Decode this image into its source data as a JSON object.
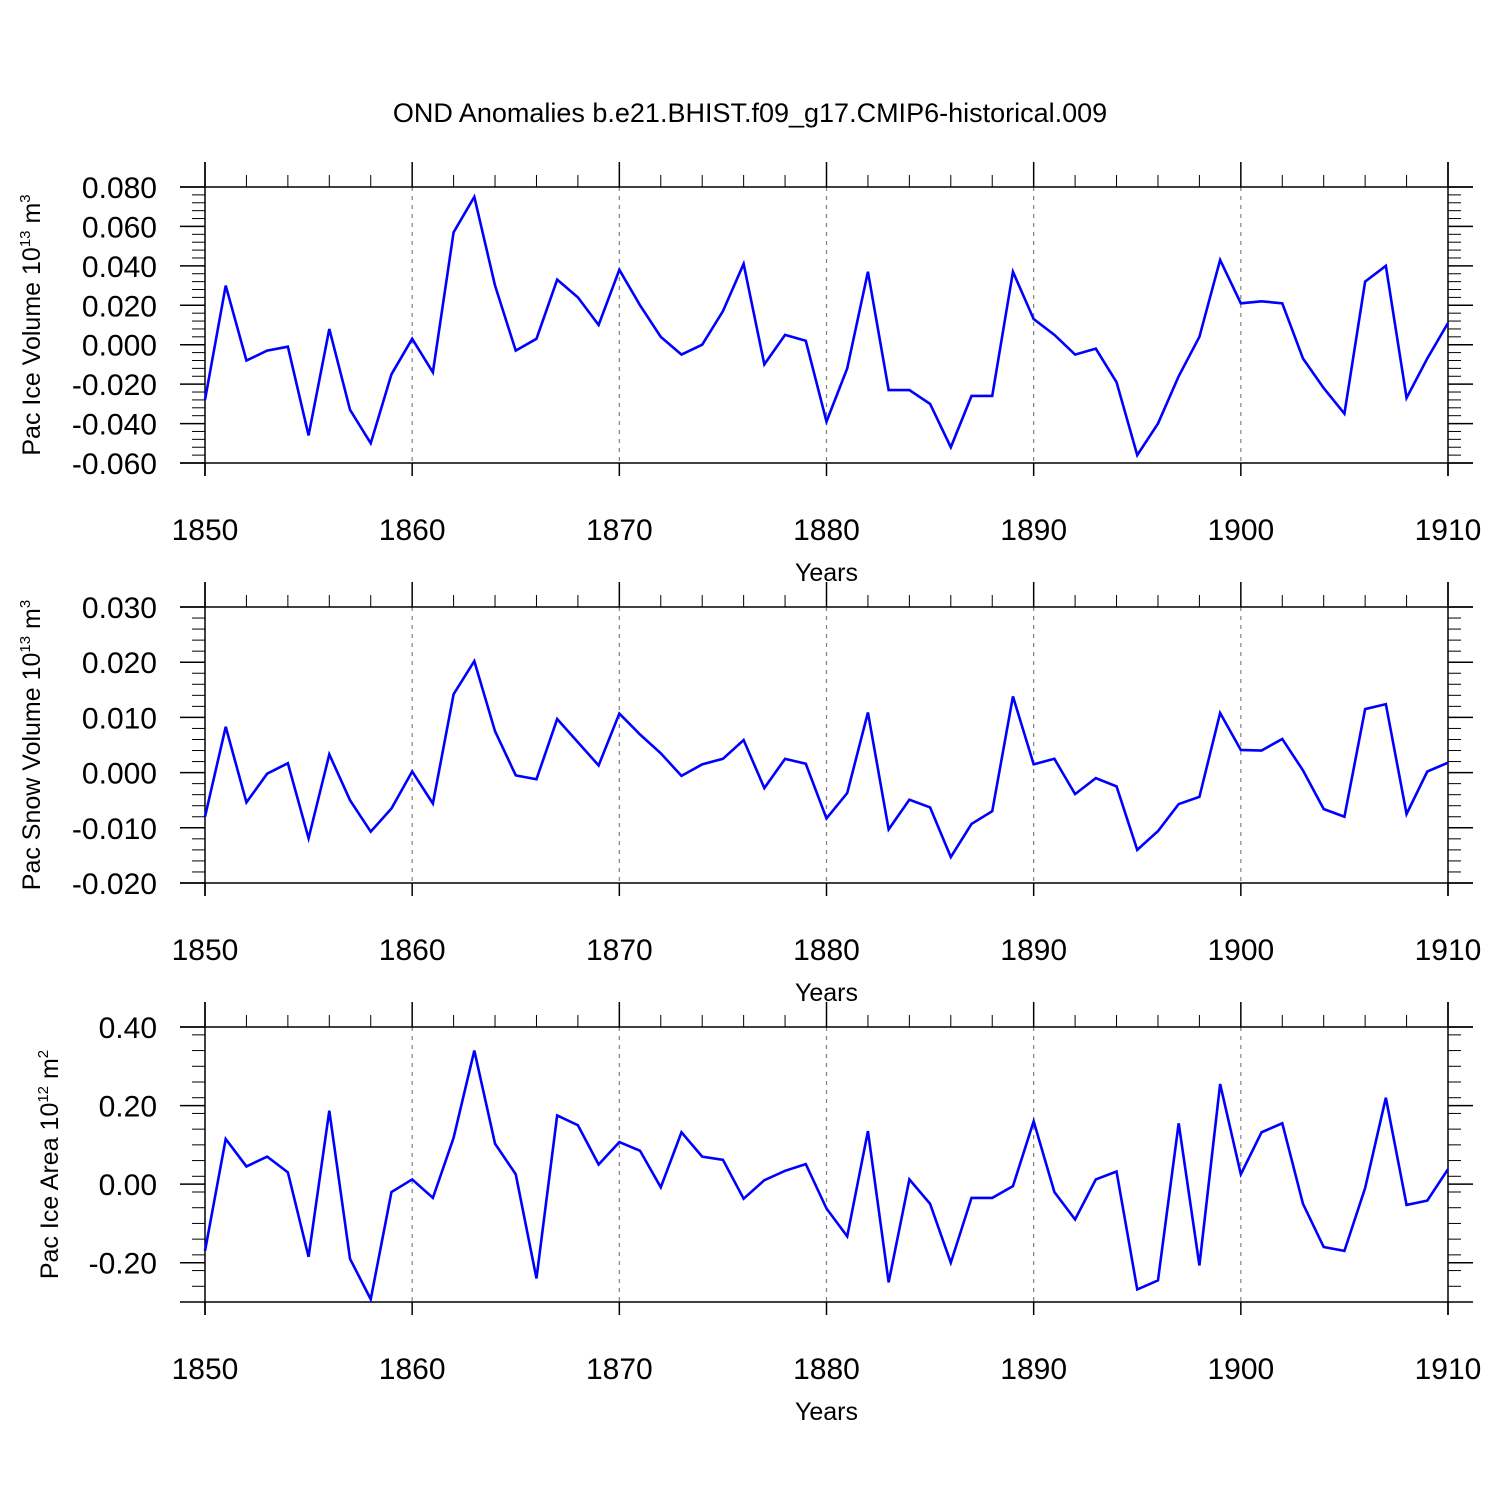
{
  "title": "OND Anomalies b.e21.BHIST.f09_g17.CMIP6-historical.009",
  "colors": {
    "line": "#0000ff",
    "axis": "#000000",
    "grid": "#808080"
  },
  "chart_data": [
    {
      "type": "line",
      "ylabel": "Pac Ice Volume 10",
      "ylabel_exp": "13",
      "ylabel_unit": " m",
      "ylabel_unit_exp": "3",
      "xlabel": "Years",
      "xlim": [
        1850,
        1910
      ],
      "ylim": [
        -0.06,
        0.08
      ],
      "yticks": [
        -0.06,
        -0.04,
        -0.02,
        0.0,
        0.02,
        0.04,
        0.06,
        0.08
      ],
      "ytick_labels": [
        "-0.060",
        "-0.040",
        "-0.020",
        "0.000",
        "0.020",
        "0.040",
        "0.060",
        "0.080"
      ],
      "xticks": [
        1850,
        1860,
        1870,
        1880,
        1890,
        1900,
        1910
      ],
      "xtick_labels": [
        "1850",
        "1860",
        "1870",
        "1880",
        "1890",
        "1900",
        "1910"
      ],
      "series": [
        {
          "name": "Pac Ice Volume",
          "x_start": 1850,
          "values": [
            -0.028,
            0.03,
            -0.008,
            -0.003,
            -0.001,
            -0.046,
            0.008,
            -0.033,
            -0.05,
            -0.015,
            0.003,
            -0.014,
            0.057,
            0.075,
            0.03,
            -0.003,
            0.003,
            0.033,
            0.024,
            0.01,
            0.038,
            0.02,
            0.004,
            -0.005,
            0.0,
            0.017,
            0.041,
            -0.01,
            0.005,
            0.002,
            -0.039,
            -0.012,
            0.037,
            -0.023,
            -0.023,
            -0.03,
            -0.052,
            -0.026,
            -0.026,
            0.037,
            0.013,
            0.005,
            -0.005,
            -0.002,
            -0.019,
            -0.056,
            -0.04,
            -0.016,
            0.004,
            0.043,
            0.021,
            0.022,
            0.021,
            -0.007,
            -0.022,
            -0.035,
            0.032,
            0.04,
            -0.027,
            -0.007,
            0.011
          ]
        }
      ]
    },
    {
      "type": "line",
      "ylabel": "Pac Snow Volume 10",
      "ylabel_exp": "13",
      "ylabel_unit": " m",
      "ylabel_unit_exp": "3",
      "xlabel": "Years",
      "xlim": [
        1850,
        1910
      ],
      "ylim": [
        -0.02,
        0.03
      ],
      "yticks": [
        -0.02,
        -0.01,
        0.0,
        0.01,
        0.02,
        0.03
      ],
      "ytick_labels": [
        "-0.020",
        "-0.010",
        "0.000",
        "0.010",
        "0.020",
        "0.030"
      ],
      "xticks": [
        1850,
        1860,
        1870,
        1880,
        1890,
        1900,
        1910
      ],
      "xtick_labels": [
        "1850",
        "1860",
        "1870",
        "1880",
        "1890",
        "1900",
        "1910"
      ],
      "series": [
        {
          "name": "Pac Snow Volume",
          "x_start": 1850,
          "values": [
            -0.008,
            0.0083,
            -0.0054,
            -0.0002,
            0.0017,
            -0.0119,
            0.0033,
            -0.005,
            -0.0107,
            -0.0065,
            0.0002,
            -0.0056,
            0.0142,
            0.0202,
            0.0075,
            -0.0005,
            -0.0012,
            0.0097,
            0.0055,
            0.0013,
            0.0107,
            0.0069,
            0.0035,
            -0.0006,
            0.0015,
            0.0025,
            0.0059,
            -0.0028,
            0.0025,
            0.0016,
            -0.0083,
            -0.0037,
            0.0109,
            -0.0103,
            -0.0049,
            -0.0063,
            -0.0153,
            -0.0093,
            -0.007,
            0.0138,
            0.0015,
            0.0025,
            -0.0039,
            -0.001,
            -0.0025,
            -0.014,
            -0.0106,
            -0.0057,
            -0.0044,
            0.0108,
            0.0041,
            0.004,
            0.0061,
            0.0004,
            -0.0066,
            -0.008,
            0.0115,
            0.0124,
            -0.0075,
            0.0002,
            0.0018
          ]
        }
      ]
    },
    {
      "type": "line",
      "ylabel": "Pac Ice Area 10",
      "ylabel_exp": "12",
      "ylabel_unit": " m",
      "ylabel_unit_exp": "2",
      "xlabel": "Years",
      "xlim": [
        1850,
        1910
      ],
      "ylim": [
        -0.3,
        0.4
      ],
      "yticks": [
        -0.2,
        0.0,
        0.2,
        0.4
      ],
      "ytick_labels": [
        "-0.20",
        "0.00",
        "0.20",
        "0.40"
      ],
      "xticks": [
        1850,
        1860,
        1870,
        1880,
        1890,
        1900,
        1910
      ],
      "xtick_labels": [
        "1850",
        "1860",
        "1870",
        "1880",
        "1890",
        "1900",
        "1910"
      ],
      "series": [
        {
          "name": "Pac Ice Area",
          "x_start": 1850,
          "values": [
            -0.17,
            0.115,
            0.045,
            0.07,
            0.03,
            -0.185,
            0.187,
            -0.19,
            -0.293,
            -0.02,
            0.012,
            -0.035,
            0.118,
            0.34,
            0.103,
            0.025,
            -0.24,
            0.175,
            0.15,
            0.05,
            0.107,
            0.085,
            -0.008,
            0.132,
            0.07,
            0.062,
            -0.037,
            0.01,
            0.034,
            0.051,
            -0.062,
            -0.133,
            0.135,
            -0.25,
            0.012,
            -0.05,
            -0.2,
            -0.035,
            -0.035,
            -0.005,
            0.16,
            -0.02,
            -0.09,
            0.012,
            0.032,
            -0.268,
            -0.245,
            0.155,
            -0.207,
            0.255,
            0.025,
            0.132,
            0.155,
            -0.05,
            -0.16,
            -0.17,
            -0.01,
            0.22,
            -0.053,
            -0.042,
            0.038
          ]
        }
      ]
    }
  ]
}
